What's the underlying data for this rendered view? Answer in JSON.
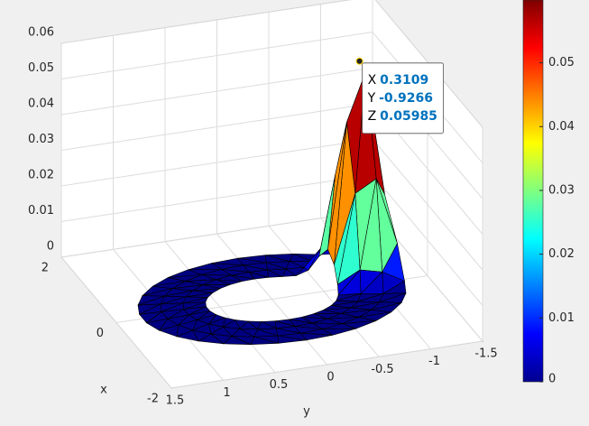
{
  "chart_data": {
    "type": "surface3d",
    "xlabel": "x",
    "ylabel": "y",
    "xlim": [
      -2,
      2
    ],
    "ylim": [
      -1.5,
      1.5
    ],
    "zlim": [
      0,
      0.06
    ],
    "xticks": [
      -2,
      0,
      2
    ],
    "yticks": [
      -1.5,
      -1,
      -0.5,
      0,
      0.5,
      1,
      1.5
    ],
    "zticks": [
      0,
      0.01,
      0.02,
      0.03,
      0.04,
      0.05,
      0.06
    ],
    "grid": true,
    "colormap": "jet",
    "clim": [
      0,
      0.05985
    ],
    "colorbar_ticks": [
      0,
      0.01,
      0.02,
      0.03,
      0.04,
      0.05
    ],
    "datatip": {
      "labels": [
        "X",
        "Y",
        "Z"
      ],
      "x": 0.3109,
      "y": -0.9266,
      "z": 0.05985
    }
  }
}
